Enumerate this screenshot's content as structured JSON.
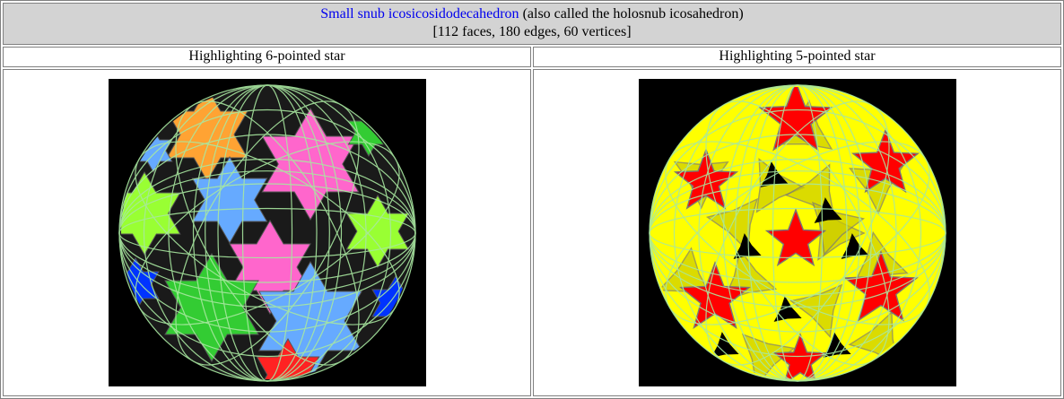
{
  "caption": {
    "link_text": "Small snub icosicosidodecahedron",
    "rest_text": " (also called the holosnub icosahedron)",
    "stats": "[112 faces, 180 edges, 60 vertices]"
  },
  "columns": [
    {
      "label": "Highlighting 6-pointed star"
    },
    {
      "label": "Highlighting 5-pointed star"
    }
  ],
  "colors": {
    "header_bg": "#d3d3d3",
    "link": "#0000ee",
    "border": "#808080",
    "image_bg": "#000000",
    "wire": "#a8e8a0",
    "left_faces": [
      "#ff66cc",
      "#66aaff",
      "#99ff33",
      "#ffa333",
      "#33cc33",
      "#0033ff",
      "#ff2222"
    ],
    "right_faces": [
      "#ffff00",
      "#ff0000",
      "#cccc00"
    ]
  }
}
